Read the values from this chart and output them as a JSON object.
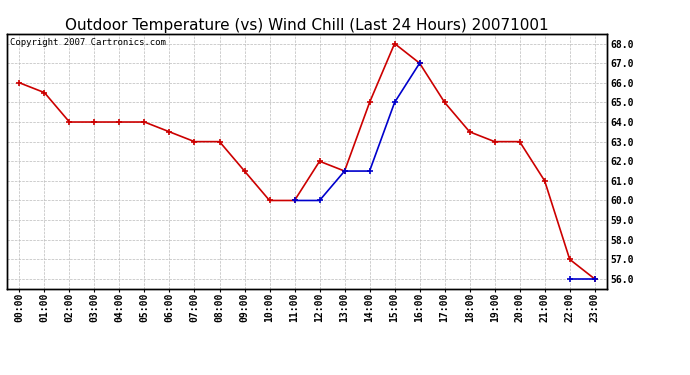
{
  "title": "Outdoor Temperature (vs) Wind Chill (Last 24 Hours) 20071001",
  "copyright": "Copyright 2007 Cartronics.com",
  "hours": [
    0,
    1,
    2,
    3,
    4,
    5,
    6,
    7,
    8,
    9,
    10,
    11,
    12,
    13,
    14,
    15,
    16,
    17,
    18,
    19,
    20,
    21,
    22,
    23
  ],
  "x_labels": [
    "00:00",
    "01:00",
    "02:00",
    "03:00",
    "04:00",
    "05:00",
    "06:00",
    "07:00",
    "08:00",
    "09:00",
    "10:00",
    "11:00",
    "12:00",
    "13:00",
    "14:00",
    "15:00",
    "16:00",
    "17:00",
    "18:00",
    "19:00",
    "20:00",
    "21:00",
    "22:00",
    "23:00"
  ],
  "temp": [
    66.0,
    65.5,
    64.0,
    64.0,
    64.0,
    64.0,
    63.5,
    63.0,
    63.0,
    61.5,
    60.0,
    60.0,
    62.0,
    61.5,
    65.0,
    68.0,
    67.0,
    65.0,
    63.5,
    63.0,
    63.0,
    61.0,
    57.0,
    56.0
  ],
  "wind_chill": [
    null,
    null,
    null,
    null,
    null,
    null,
    null,
    null,
    null,
    null,
    null,
    60.0,
    60.0,
    61.5,
    61.5,
    65.0,
    67.0,
    null,
    null,
    null,
    null,
    null,
    56.0,
    56.0
  ],
  "temp_color": "#cc0000",
  "wind_chill_color": "#0000cc",
  "bg_color": "#ffffff",
  "plot_bg_color": "#ffffff",
  "grid_color": "#bbbbbb",
  "ylim_min": 55.5,
  "ylim_max": 68.5,
  "ytick_min": 56.0,
  "ytick_max": 68.0,
  "ytick_step": 1.0,
  "title_fontsize": 11,
  "copyright_fontsize": 6.5,
  "tick_fontsize": 7,
  "marker": "+",
  "marker_size": 5,
  "linewidth": 1.2
}
